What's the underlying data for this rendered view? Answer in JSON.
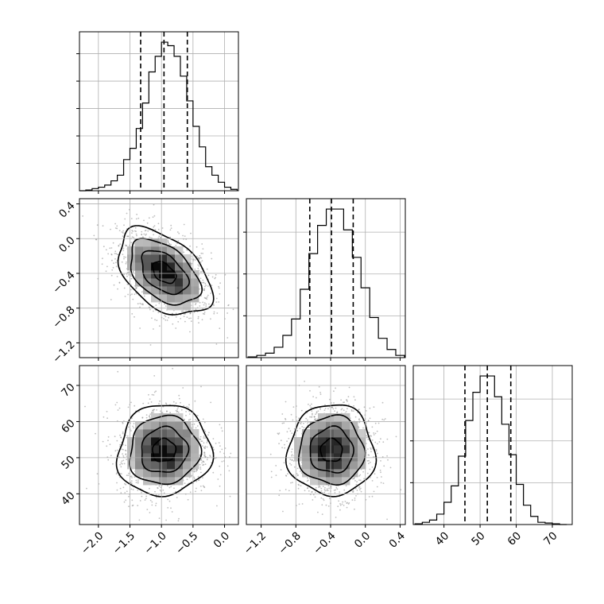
{
  "colors": {
    "background": "#ffffff",
    "grid": "#b0b0b0",
    "line": "#000000",
    "scatter": "#8a8a8a"
  },
  "chart_data": {
    "type": "corner",
    "title": "",
    "parameters": [
      {
        "key": "p0",
        "lim": [
          -2.3,
          0.22
        ],
        "ticks": [
          -2.0,
          -1.5,
          -1.0,
          -0.5,
          0.0
        ],
        "tick_labels": [
          "−2.0",
          "−1.5",
          "−1.0",
          "−0.5",
          "0.0"
        ],
        "quantiles": [
          -1.33,
          -0.96,
          -0.59
        ]
      },
      {
        "key": "p1",
        "lim": [
          -1.37,
          0.46
        ],
        "ticks": [
          -1.2,
          -0.8,
          -0.4,
          0.0,
          0.4
        ],
        "tick_labels": [
          "−1.2",
          "−0.8",
          "−0.4",
          "0.0",
          "0.4"
        ],
        "quantiles": [
          -0.64,
          -0.39,
          -0.14
        ]
      },
      {
        "key": "p2",
        "lim": [
          31.5,
          75.5
        ],
        "ticks": [
          40,
          50,
          60,
          70
        ],
        "tick_labels": [
          "40",
          "50",
          "60",
          "70"
        ],
        "quantiles": [
          45.8,
          52.0,
          58.5
        ]
      }
    ],
    "histograms": [
      {
        "param": 0,
        "bin_edges": [
          -2.3,
          -2.2,
          -2.1,
          -2.0,
          -1.9,
          -1.8,
          -1.7,
          -1.6,
          -1.5,
          -1.4,
          -1.3,
          -1.2,
          -1.1,
          -1.0,
          -0.9,
          -0.8,
          -0.7,
          -0.6,
          -0.5,
          -0.4,
          -0.3,
          -0.2,
          -0.1,
          0.0,
          0.1,
          0.2
        ],
        "counts": [
          0,
          1,
          3,
          5,
          8,
          14,
          22,
          44,
          60,
          88,
          124,
          168,
          190,
          210,
          205,
          190,
          162,
          127,
          91,
          62,
          34,
          22,
          12,
          5,
          2
        ]
      },
      {
        "param": 1,
        "bin_edges": [
          -1.35,
          -1.25,
          -1.15,
          -1.05,
          -0.95,
          -0.85,
          -0.75,
          -0.65,
          -0.55,
          -0.45,
          -0.35,
          -0.25,
          -0.15,
          -0.05,
          0.05,
          0.15,
          0.25,
          0.35,
          0.45
        ],
        "counts": [
          1,
          3,
          6,
          14,
          30,
          52,
          92,
          140,
          178,
          200,
          200,
          172,
          135,
          94,
          54,
          26,
          11,
          3
        ]
      },
      {
        "param": 2,
        "bin_edges": [
          32,
          34,
          36,
          38,
          40,
          42,
          44,
          46,
          48,
          50,
          52,
          54,
          56,
          58,
          60,
          62,
          64,
          66,
          68,
          70,
          72,
          74
        ],
        "counts": [
          1,
          3,
          6,
          14,
          30,
          52,
          92,
          140,
          178,
          200,
          200,
          172,
          135,
          94,
          54,
          26,
          11,
          3,
          2,
          1,
          0
        ]
      }
    ],
    "joint": [
      {
        "x_param": 0,
        "y_param": 1,
        "center": [
          -0.96,
          -0.39
        ],
        "sigma": [
          0.37,
          0.25
        ],
        "correlation": -0.45,
        "contour_levels_sigma": [
          0.5,
          1.0,
          1.5,
          2.0
        ]
      },
      {
        "x_param": 0,
        "y_param": 2,
        "center": [
          -0.96,
          52.0
        ],
        "sigma": [
          0.37,
          6.3
        ],
        "correlation": 0.05,
        "contour_levels_sigma": [
          0.5,
          1.0,
          1.5,
          2.0
        ]
      },
      {
        "x_param": 1,
        "y_param": 2,
        "center": [
          -0.39,
          52.0
        ],
        "sigma": [
          0.25,
          6.3
        ],
        "correlation": 0.0,
        "contour_levels_sigma": [
          0.5,
          1.0,
          1.5,
          2.0
        ]
      }
    ],
    "grid": true,
    "legend": "none"
  }
}
